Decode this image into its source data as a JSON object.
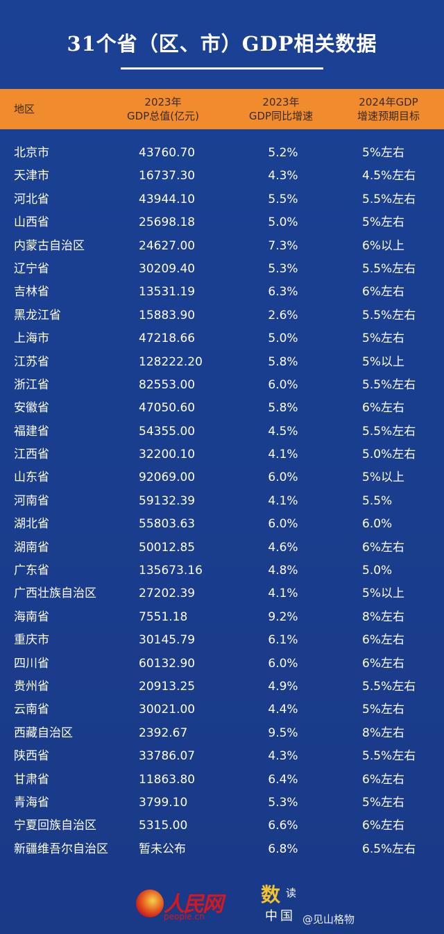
{
  "title": "31个省（区、市）GDP相关数据",
  "header": {
    "col1": "地区",
    "col2_line1": "2023年",
    "col2_line2": "GDP总值(亿元)",
    "col3_line1": "2023年",
    "col3_line2": "GDP同比增速",
    "col4_line1": "2024年GDP",
    "col4_line2": "增速预期目标"
  },
  "rows": [
    {
      "name": "北京市",
      "gdp": "43760.70",
      "growth": "5.2%",
      "target": "5%左右"
    },
    {
      "name": "天津市",
      "gdp": "16737.30",
      "growth": "4.3%",
      "target": "4.5%左右"
    },
    {
      "name": "河北省",
      "gdp": "43944.10",
      "growth": "5.5%",
      "target": "5.5%左右"
    },
    {
      "name": "山西省",
      "gdp": "25698.18",
      "growth": "5.0%",
      "target": "5%左右"
    },
    {
      "name": "内蒙古自治区",
      "gdp": "24627.00",
      "growth": "7.3%",
      "target": "6%以上"
    },
    {
      "name": "辽宁省",
      "gdp": "30209.40",
      "growth": "5.3%",
      "target": "5.5%左右"
    },
    {
      "name": "吉林省",
      "gdp": "13531.19",
      "growth": "6.3%",
      "target": "6%左右"
    },
    {
      "name": "黑龙江省",
      "gdp": "15883.90",
      "growth": "2.6%",
      "target": "5.5%左右"
    },
    {
      "name": "上海市",
      "gdp": "47218.66",
      "growth": "5.0%",
      "target": "5%左右"
    },
    {
      "name": "江苏省",
      "gdp": "128222.20",
      "growth": "5.8%",
      "target": "5%以上"
    },
    {
      "name": "浙江省",
      "gdp": "82553.00",
      "growth": "6.0%",
      "target": "5.5%左右"
    },
    {
      "name": "安徽省",
      "gdp": "47050.60",
      "growth": "5.8%",
      "target": "6%左右"
    },
    {
      "name": "福建省",
      "gdp": "54355.00",
      "growth": "4.5%",
      "target": "5.5%左右"
    },
    {
      "name": "江西省",
      "gdp": "32200.10",
      "growth": "4.1%",
      "target": "5.0%左右"
    },
    {
      "name": "山东省",
      "gdp": "92069.00",
      "growth": "6.0%",
      "target": "5%以上"
    },
    {
      "name": "河南省",
      "gdp": "59132.39",
      "growth": "4.1%",
      "target": "5.5%"
    },
    {
      "name": "湖北省",
      "gdp": "55803.63",
      "growth": "6.0%",
      "target": "6.0%"
    },
    {
      "name": "湖南省",
      "gdp": "50012.85",
      "growth": "4.6%",
      "target": "6%左右"
    },
    {
      "name": "广东省",
      "gdp": "135673.16",
      "growth": "4.8%",
      "target": "5.0%"
    },
    {
      "name": "广西壮族自治区",
      "gdp": "27202.39",
      "growth": "4.1%",
      "target": "5%以上"
    },
    {
      "name": "海南省",
      "gdp": "7551.18",
      "growth": "9.2%",
      "target": "8%左右"
    },
    {
      "name": "重庆市",
      "gdp": "30145.79",
      "growth": "6.1%",
      "target": "6%左右"
    },
    {
      "name": "四川省",
      "gdp": "60132.90",
      "growth": "6.0%",
      "target": "6%左右"
    },
    {
      "name": "贵州省",
      "gdp": "20913.25",
      "growth": "4.9%",
      "target": "5.5%左右"
    },
    {
      "name": "云南省",
      "gdp": "30021.00",
      "growth": "4.4%",
      "target": "5%左右"
    },
    {
      "name": "西藏自治区",
      "gdp": "2392.67",
      "growth": "9.5%",
      "target": "8%左右"
    },
    {
      "name": "陕西省",
      "gdp": "33786.07",
      "growth": "4.3%",
      "target": "5.5%左右"
    },
    {
      "name": "甘肃省",
      "gdp": "11863.80",
      "growth": "6.4%",
      "target": "6%左右"
    },
    {
      "name": "青海省",
      "gdp": "3799.10",
      "growth": "5.3%",
      "target": "5%左右"
    },
    {
      "name": "宁夏回族自治区",
      "gdp": "5315.00",
      "growth": "6.6%",
      "target": "6%左右"
    },
    {
      "name": "新疆维吾尔自治区",
      "gdp": "暂未公布",
      "growth": "6.8%",
      "target": "6.5%左右"
    }
  ],
  "footer": {
    "logo_text": "人民网",
    "logo_url": "people.cn",
    "brand_char1": "数",
    "brand_char2": "读",
    "brand_line2": "中国",
    "watermark": "@见山格物"
  },
  "colors": {
    "background": "#1a3f90",
    "header": "#f08c2e",
    "accent_gold": "#f3c42b",
    "logo_red": "#d8161d"
  }
}
